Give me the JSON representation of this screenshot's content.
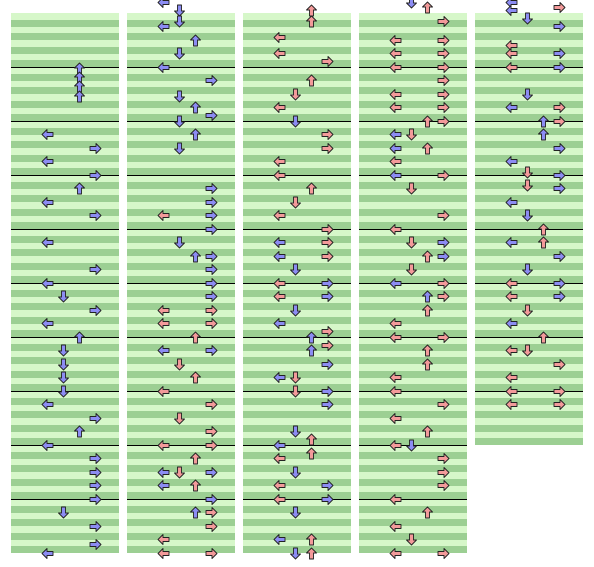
{
  "colors": {
    "stripe_light": "#d6f7c9",
    "stripe_dark": "#9ccf93",
    "measure_line": "#000000",
    "note_blue": "#8c8cf3",
    "note_red": "#f39a9a",
    "note_outline": "#222222"
  },
  "legend": {
    "icons": [
      "left-arrow-icon",
      "down-arrow-icon",
      "up-arrow-icon",
      "right-arrow-icon"
    ],
    "lanes": [
      "left",
      "down",
      "up",
      "right"
    ]
  },
  "columns": [
    {
      "measures": 10,
      "notes": [
        [
          "U",
          1.03,
          "b"
        ],
        [
          "U",
          1.2,
          "b"
        ],
        [
          "U",
          1.36,
          "b"
        ],
        [
          "U",
          1.55,
          "b"
        ],
        [
          "L",
          2.25,
          "b"
        ],
        [
          "R",
          2.5,
          "b"
        ],
        [
          "L",
          2.75,
          "b"
        ],
        [
          "R",
          3.0,
          "b"
        ],
        [
          "U",
          3.25,
          "b"
        ],
        [
          "L",
          3.5,
          "b"
        ],
        [
          "R",
          3.75,
          "b"
        ],
        [
          "L",
          4.25,
          "b"
        ],
        [
          "R",
          4.75,
          "b"
        ],
        [
          "L",
          5.0,
          "b"
        ],
        [
          "D",
          5.25,
          "b"
        ],
        [
          "R",
          5.5,
          "b"
        ],
        [
          "L",
          5.75,
          "b"
        ],
        [
          "U",
          6.0,
          "b"
        ],
        [
          "D",
          6.25,
          "b"
        ],
        [
          "D",
          6.5,
          "b"
        ],
        [
          "D",
          6.75,
          "b"
        ],
        [
          "D",
          7.0,
          "b"
        ],
        [
          "L",
          7.25,
          "b"
        ],
        [
          "R",
          7.5,
          "b"
        ],
        [
          "U",
          7.75,
          "b"
        ],
        [
          "L",
          8.0,
          "b"
        ],
        [
          "R",
          8.25,
          "b"
        ],
        [
          "R",
          8.5,
          "b"
        ],
        [
          "R",
          8.75,
          "b"
        ],
        [
          "R",
          9.0,
          "b"
        ],
        [
          "D",
          9.25,
          "b"
        ],
        [
          "R",
          9.5,
          "b"
        ],
        [
          "R",
          9.85,
          "b"
        ],
        [
          "L",
          10.0,
          "b"
        ]
      ]
    },
    {
      "measures": 10,
      "notes": [
        [
          "L",
          -0.2,
          "b"
        ],
        [
          "D",
          -0.05,
          "b"
        ],
        [
          "D",
          0.15,
          "b"
        ],
        [
          "L",
          0.25,
          "b"
        ],
        [
          "U",
          0.5,
          "b"
        ],
        [
          "D",
          0.75,
          "b"
        ],
        [
          "L",
          1.0,
          "b"
        ],
        [
          "R",
          1.25,
          "b"
        ],
        [
          "D",
          1.55,
          "b"
        ],
        [
          "U",
          1.75,
          "b"
        ],
        [
          "R",
          1.9,
          "b"
        ],
        [
          "D",
          2.0,
          "b"
        ],
        [
          "U",
          2.25,
          "b"
        ],
        [
          "D",
          2.5,
          "b"
        ],
        [
          "R",
          3.25,
          "b"
        ],
        [
          "R",
          3.5,
          "b"
        ],
        [
          "R",
          3.75,
          "b"
        ],
        [
          "L",
          3.75,
          "r"
        ],
        [
          "R",
          4.0,
          "b"
        ],
        [
          "D",
          4.25,
          "b"
        ],
        [
          "U",
          4.5,
          "b"
        ],
        [
          "R",
          4.5,
          "b"
        ],
        [
          "R",
          4.75,
          "b"
        ],
        [
          "R",
          5.0,
          "b"
        ],
        [
          "R",
          5.25,
          "b"
        ],
        [
          "R",
          5.5,
          "r"
        ],
        [
          "L",
          5.5,
          "r"
        ],
        [
          "R",
          5.75,
          "r"
        ],
        [
          "L",
          5.75,
          "r"
        ],
        [
          "U",
          6.0,
          "r"
        ],
        [
          "L",
          6.25,
          "b"
        ],
        [
          "R",
          6.25,
          "b"
        ],
        [
          "D",
          6.5,
          "r"
        ],
        [
          "U",
          6.75,
          "r"
        ],
        [
          "L",
          7.0,
          "r"
        ],
        [
          "R",
          7.25,
          "r"
        ],
        [
          "D",
          7.5,
          "r"
        ],
        [
          "R",
          7.75,
          "r"
        ],
        [
          "R",
          8.0,
          "r"
        ],
        [
          "L",
          8.0,
          "r"
        ],
        [
          "U",
          8.25,
          "r"
        ],
        [
          "D",
          8.5,
          "r"
        ],
        [
          "L",
          8.5,
          "b"
        ],
        [
          "R",
          8.5,
          "b"
        ],
        [
          "U",
          8.75,
          "r"
        ],
        [
          "L",
          8.75,
          "b"
        ],
        [
          "R",
          9.0,
          "b"
        ],
        [
          "U",
          9.25,
          "b"
        ],
        [
          "R",
          9.25,
          "r"
        ],
        [
          "R",
          9.5,
          "r"
        ],
        [
          "L",
          9.75,
          "r"
        ],
        [
          "R",
          10.0,
          "r"
        ],
        [
          "L",
          10.0,
          "r"
        ]
      ]
    },
    {
      "measures": 10,
      "notes": [
        [
          "U",
          -0.05,
          "r"
        ],
        [
          "U",
          0.15,
          "r"
        ],
        [
          "L",
          0.45,
          "r"
        ],
        [
          "L",
          0.75,
          "r"
        ],
        [
          "R",
          0.9,
          "r"
        ],
        [
          "U",
          1.25,
          "r"
        ],
        [
          "D",
          1.5,
          "r"
        ],
        [
          "L",
          1.75,
          "r"
        ],
        [
          "D",
          2.0,
          "b"
        ],
        [
          "R",
          2.25,
          "r"
        ],
        [
          "R",
          2.5,
          "r"
        ],
        [
          "L",
          2.75,
          "r"
        ],
        [
          "L",
          3.0,
          "r"
        ],
        [
          "U",
          3.25,
          "r"
        ],
        [
          "D",
          3.5,
          "r"
        ],
        [
          "L",
          3.75,
          "r"
        ],
        [
          "R",
          4.0,
          "r"
        ],
        [
          "L",
          4.25,
          "b"
        ],
        [
          "R",
          4.25,
          "r"
        ],
        [
          "L",
          4.5,
          "b"
        ],
        [
          "R",
          4.5,
          "r"
        ],
        [
          "D",
          4.75,
          "b"
        ],
        [
          "R",
          5.0,
          "b"
        ],
        [
          "L",
          5.0,
          "r"
        ],
        [
          "R",
          5.25,
          "b"
        ],
        [
          "L",
          5.25,
          "r"
        ],
        [
          "D",
          5.5,
          "b"
        ],
        [
          "L",
          5.75,
          "b"
        ],
        [
          "R",
          5.9,
          "r"
        ],
        [
          "U",
          6.0,
          "b"
        ],
        [
          "R",
          6.15,
          "r"
        ],
        [
          "U",
          6.25,
          "b"
        ],
        [
          "R",
          6.5,
          "b"
        ],
        [
          "L",
          6.75,
          "b"
        ],
        [
          "D",
          6.75,
          "r"
        ],
        [
          "R",
          7.0,
          "b"
        ],
        [
          "D",
          7.0,
          "r"
        ],
        [
          "R",
          7.25,
          "b"
        ],
        [
          "D",
          7.75,
          "b"
        ],
        [
          "U",
          7.9,
          "r"
        ],
        [
          "L",
          8.0,
          "b"
        ],
        [
          "U",
          8.15,
          "r"
        ],
        [
          "L",
          8.25,
          "r"
        ],
        [
          "D",
          8.5,
          "b"
        ],
        [
          "R",
          8.75,
          "b"
        ],
        [
          "L",
          8.75,
          "r"
        ],
        [
          "R",
          9.0,
          "b"
        ],
        [
          "L",
          9.0,
          "r"
        ],
        [
          "D",
          9.25,
          "b"
        ],
        [
          "L",
          9.75,
          "b"
        ],
        [
          "U",
          9.75,
          "r"
        ],
        [
          "D",
          10.0,
          "b"
        ],
        [
          "U",
          10.0,
          "r"
        ]
      ]
    },
    {
      "measures": 10,
      "notes": [
        [
          "D",
          -0.2,
          "b"
        ],
        [
          "U",
          -0.1,
          "r"
        ],
        [
          "R",
          0.15,
          "r"
        ],
        [
          "R",
          0.5,
          "r"
        ],
        [
          "L",
          0.5,
          "r"
        ],
        [
          "R",
          0.75,
          "r"
        ],
        [
          "L",
          0.75,
          "r"
        ],
        [
          "R",
          1.0,
          "r"
        ],
        [
          "L",
          1.0,
          "r"
        ],
        [
          "R",
          1.25,
          "r"
        ],
        [
          "R",
          1.5,
          "r"
        ],
        [
          "L",
          1.5,
          "r"
        ],
        [
          "R",
          1.75,
          "r"
        ],
        [
          "L",
          1.75,
          "r"
        ],
        [
          "R",
          2.0,
          "r"
        ],
        [
          "U",
          2.0,
          "r"
        ],
        [
          "L",
          2.25,
          "b"
        ],
        [
          "D",
          2.25,
          "r"
        ],
        [
          "L",
          2.5,
          "b"
        ],
        [
          "U",
          2.5,
          "r"
        ],
        [
          "L",
          2.75,
          "r"
        ],
        [
          "R",
          3.0,
          "r"
        ],
        [
          "L",
          3.0,
          "b"
        ],
        [
          "D",
          3.25,
          "r"
        ],
        [
          "R",
          3.75,
          "r"
        ],
        [
          "L",
          4.0,
          "r"
        ],
        [
          "D",
          4.25,
          "r"
        ],
        [
          "R",
          4.25,
          "b"
        ],
        [
          "U",
          4.5,
          "r"
        ],
        [
          "R",
          4.5,
          "b"
        ],
        [
          "D",
          4.75,
          "r"
        ],
        [
          "R",
          5.0,
          "r"
        ],
        [
          "L",
          5.0,
          "b"
        ],
        [
          "R",
          5.25,
          "r"
        ],
        [
          "U",
          5.25,
          "b"
        ],
        [
          "U",
          5.5,
          "r"
        ],
        [
          "L",
          5.75,
          "r"
        ],
        [
          "R",
          6.0,
          "r"
        ],
        [
          "L",
          6.0,
          "r"
        ],
        [
          "U",
          6.25,
          "r"
        ],
        [
          "U",
          6.5,
          "r"
        ],
        [
          "L",
          6.75,
          "r"
        ],
        [
          "L",
          7.0,
          "r"
        ],
        [
          "R",
          7.25,
          "r"
        ],
        [
          "L",
          7.5,
          "r"
        ],
        [
          "U",
          7.75,
          "r"
        ],
        [
          "D",
          8.0,
          "b"
        ],
        [
          "L",
          8.0,
          "r"
        ],
        [
          "R",
          8.25,
          "r"
        ],
        [
          "R",
          8.5,
          "r"
        ],
        [
          "R",
          8.75,
          "r"
        ],
        [
          "L",
          9.0,
          "r"
        ],
        [
          "U",
          9.25,
          "r"
        ],
        [
          "L",
          9.5,
          "r"
        ],
        [
          "D",
          9.75,
          "r"
        ],
        [
          "L",
          10.0,
          "r"
        ],
        [
          "R",
          10.0,
          "r"
        ]
      ]
    },
    {
      "measures": 8,
      "notes": [
        [
          "L",
          -0.2,
          "b"
        ],
        [
          "R",
          -0.1,
          "r"
        ],
        [
          "L",
          -0.05,
          "b"
        ],
        [
          "D",
          0.1,
          "b"
        ],
        [
          "R",
          0.25,
          "b"
        ],
        [
          "L",
          0.6,
          "r"
        ],
        [
          "R",
          0.75,
          "b"
        ],
        [
          "L",
          0.75,
          "r"
        ],
        [
          "R",
          1.0,
          "b"
        ],
        [
          "L",
          1.0,
          "r"
        ],
        [
          "D",
          1.5,
          "b"
        ],
        [
          "L",
          1.75,
          "b"
        ],
        [
          "R",
          1.75,
          "r"
        ],
        [
          "U",
          2.0,
          "b"
        ],
        [
          "R",
          2.0,
          "r"
        ],
        [
          "U",
          2.25,
          "b"
        ],
        [
          "R",
          2.5,
          "b"
        ],
        [
          "L",
          2.75,
          "b"
        ],
        [
          "D",
          2.95,
          "r"
        ],
        [
          "R",
          3.0,
          "b"
        ],
        [
          "D",
          3.2,
          "r"
        ],
        [
          "R",
          3.25,
          "b"
        ],
        [
          "L",
          3.5,
          "b"
        ],
        [
          "D",
          3.75,
          "b"
        ],
        [
          "U",
          4.0,
          "r"
        ],
        [
          "L",
          4.25,
          "b"
        ],
        [
          "U",
          4.25,
          "r"
        ],
        [
          "R",
          4.5,
          "b"
        ],
        [
          "D",
          4.75,
          "b"
        ],
        [
          "R",
          5.0,
          "b"
        ],
        [
          "L",
          5.0,
          "r"
        ],
        [
          "R",
          5.25,
          "b"
        ],
        [
          "L",
          5.25,
          "r"
        ],
        [
          "D",
          5.5,
          "r"
        ],
        [
          "L",
          5.75,
          "b"
        ],
        [
          "U",
          6.0,
          "r"
        ],
        [
          "D",
          6.25,
          "r"
        ],
        [
          "L",
          6.25,
          "r"
        ],
        [
          "R",
          6.5,
          "r"
        ],
        [
          "L",
          6.75,
          "r"
        ],
        [
          "R",
          7.0,
          "r"
        ],
        [
          "L",
          7.0,
          "r"
        ],
        [
          "R",
          7.25,
          "r"
        ],
        [
          "L",
          7.25,
          "r"
        ]
      ]
    }
  ]
}
